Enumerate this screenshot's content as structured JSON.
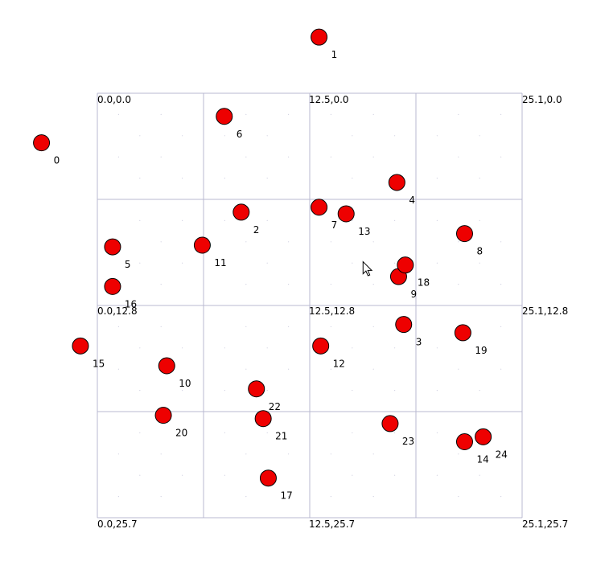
{
  "board": {
    "x_range": [
      0.0,
      25.1
    ],
    "y_range": [
      0.0,
      25.7
    ],
    "grid_divisions": 4
  },
  "corner_labels": [
    {
      "text": "0.0,0.0",
      "x": 0.0,
      "y": 0.0
    },
    {
      "text": "12.5,0.0",
      "x": 12.5,
      "y": 0.0
    },
    {
      "text": "25.1,0.0",
      "x": 25.1,
      "y": 0.0
    },
    {
      "text": "0.0,12.8",
      "x": 0.0,
      "y": 12.8
    },
    {
      "text": "12.5,12.8",
      "x": 12.5,
      "y": 12.8
    },
    {
      "text": "25.1,12.8",
      "x": 25.1,
      "y": 12.8
    },
    {
      "text": "0.0,25.7",
      "x": 0.0,
      "y": 25.7
    },
    {
      "text": "12.5,25.7",
      "x": 12.5,
      "y": 25.7
    },
    {
      "text": "25.1,25.7",
      "x": 25.1,
      "y": 25.7
    }
  ],
  "points": [
    {
      "label": "0",
      "x": -3.3,
      "y": 3.0
    },
    {
      "label": "1",
      "x": 13.1,
      "y": -3.4
    },
    {
      "label": "2",
      "x": 8.5,
      "y": 7.2
    },
    {
      "label": "3",
      "x": 18.1,
      "y": 14.0
    },
    {
      "label": "4",
      "x": 17.7,
      "y": 5.4
    },
    {
      "label": "5",
      "x": 0.9,
      "y": 9.3
    },
    {
      "label": "6",
      "x": 7.5,
      "y": 1.4
    },
    {
      "label": "7",
      "x": 13.1,
      "y": 6.9
    },
    {
      "label": "8",
      "x": 21.7,
      "y": 8.5
    },
    {
      "label": "9",
      "x": 17.8,
      "y": 11.1
    },
    {
      "label": "10",
      "x": 4.1,
      "y": 16.5
    },
    {
      "label": "11",
      "x": 6.2,
      "y": 9.2
    },
    {
      "label": "12",
      "x": 13.2,
      "y": 15.3
    },
    {
      "label": "13",
      "x": 14.7,
      "y": 7.3
    },
    {
      "label": "14",
      "x": 21.7,
      "y": 21.1
    },
    {
      "label": "15",
      "x": -1.0,
      "y": 15.3
    },
    {
      "label": "16",
      "x": 0.9,
      "y": 11.7
    },
    {
      "label": "17",
      "x": 10.1,
      "y": 23.3
    },
    {
      "label": "18",
      "x": 18.2,
      "y": 10.4
    },
    {
      "label": "19",
      "x": 21.6,
      "y": 14.5
    },
    {
      "label": "20",
      "x": 3.9,
      "y": 19.5
    },
    {
      "label": "21",
      "x": 9.8,
      "y": 19.7
    },
    {
      "label": "22",
      "x": 9.4,
      "y": 17.9
    },
    {
      "label": "23",
      "x": 17.3,
      "y": 20.0
    },
    {
      "label": "24",
      "x": 22.8,
      "y": 20.8
    }
  ],
  "colors": {
    "point_fill": "#ee0000",
    "grid": "#b8b8d0"
  },
  "cursor": {
    "icon": "arrow-cursor-icon",
    "x": 15.7,
    "y": 10.2
  }
}
